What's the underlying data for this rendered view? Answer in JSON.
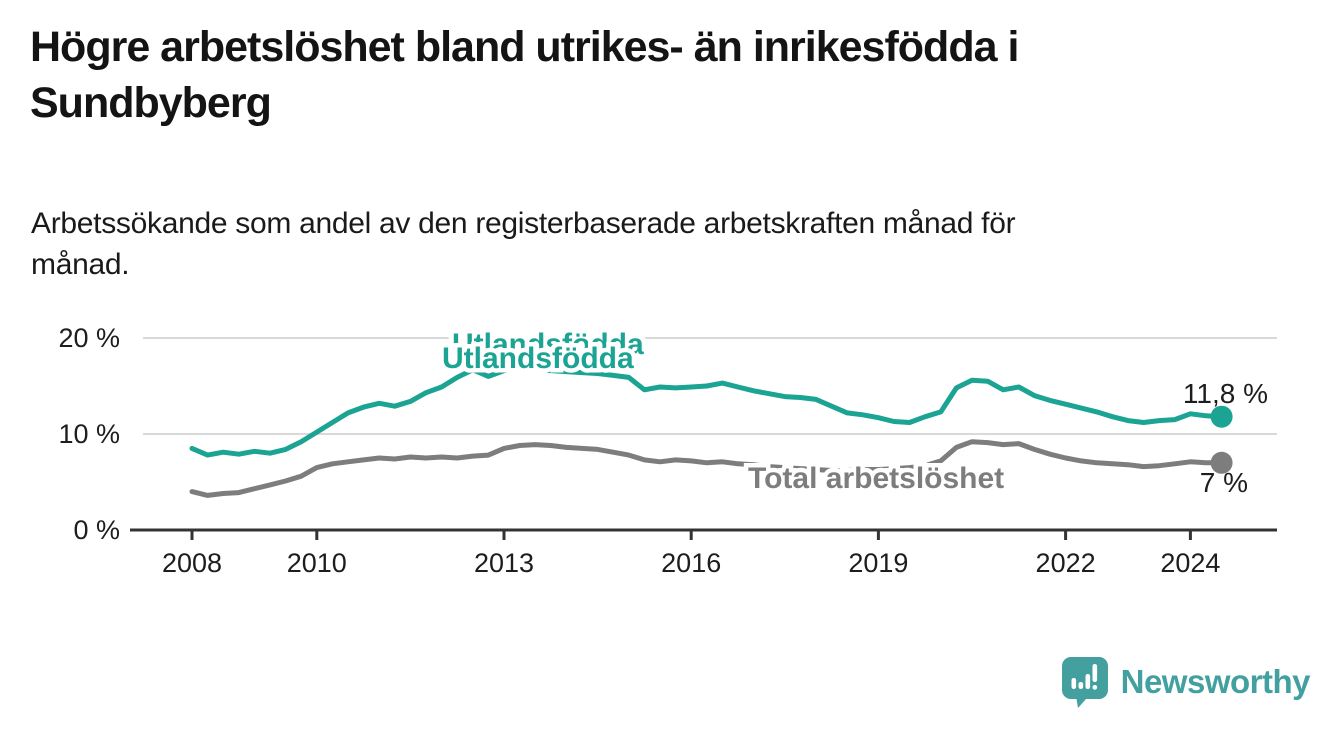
{
  "header": {
    "title_line1": "Högre arbetslöshet bland utrikes- än inrikesfödda i",
    "title_line2": "Sundbyberg",
    "subtitle_line1": "Arbetssökande som andel av den registerbaserade arbetskraften månad för",
    "subtitle_line2": "månad."
  },
  "chart_data": {
    "type": "line",
    "title": "Högre arbetslöshet bland utrikes- än inrikesfödda i Sundbyberg",
    "subtitle": "Arbetssökande som andel av den registerbaserade arbetskraften månad för månad.",
    "unit": "%",
    "grid": "horizontal",
    "legend_position": "inline-labels",
    "ylim": [
      0,
      20
    ],
    "y_tick_labels": [
      "0 %",
      "10 %",
      "20 %"
    ],
    "x_tick_years": [
      2008,
      2010,
      2013,
      2016,
      2019,
      2022,
      2024
    ],
    "x_tick_labels": [
      "2008",
      "2010",
      "2013",
      "2016",
      "2019",
      "2022",
      "2024"
    ],
    "x_start": 2008,
    "x_step": 0.25,
    "x_end": 2024.5,
    "series": [
      {
        "name": "Utlandsfödda",
        "color": "#1ba393",
        "end_label": "11,8 %",
        "end_value": 11.8,
        "values": [
          8.5,
          7.8,
          8.1,
          7.9,
          8.2,
          8.0,
          8.4,
          9.2,
          10.2,
          11.2,
          12.2,
          12.8,
          13.2,
          12.9,
          13.4,
          14.3,
          14.9,
          15.9,
          16.7,
          16.0,
          16.6,
          16.9,
          16.8,
          16.6,
          16.5,
          16.4,
          16.3,
          16.1,
          15.9,
          14.6,
          14.9,
          14.8,
          14.9,
          15.0,
          15.3,
          14.9,
          14.5,
          14.2,
          13.9,
          13.8,
          13.6,
          12.9,
          12.2,
          12.0,
          11.7,
          11.3,
          11.2,
          11.8,
          12.3,
          14.8,
          15.6,
          15.5,
          14.6,
          14.9,
          14.0,
          13.5,
          13.1,
          12.7,
          12.3,
          11.8,
          11.4,
          11.2,
          11.4,
          11.5,
          12.1,
          11.9,
          11.8
        ]
      },
      {
        "name": "Total arbetslöshet",
        "color": "#7d7d7d",
        "end_label": "7 %",
        "end_value": 7.0,
        "values": [
          4.0,
          3.6,
          3.8,
          3.9,
          4.3,
          4.7,
          5.1,
          5.6,
          6.5,
          6.9,
          7.1,
          7.3,
          7.5,
          7.4,
          7.6,
          7.5,
          7.6,
          7.5,
          7.7,
          7.8,
          8.5,
          8.8,
          8.9,
          8.8,
          8.6,
          8.5,
          8.4,
          8.1,
          7.8,
          7.3,
          7.1,
          7.3,
          7.2,
          7.0,
          7.1,
          6.9,
          6.8,
          6.6,
          6.5,
          6.4,
          6.3,
          6.2,
          6.2,
          6.3,
          6.3,
          6.4,
          6.5,
          6.7,
          7.2,
          8.6,
          9.2,
          9.1,
          8.9,
          9.0,
          8.4,
          7.9,
          7.5,
          7.2,
          7.0,
          6.9,
          6.8,
          6.6,
          6.7,
          6.9,
          7.1,
          7.0,
          7.0
        ]
      }
    ]
  },
  "branding": {
    "wordmark": "Newsworthy",
    "logo_color": "#43a09f",
    "icon": "bar-chart-speech-bubble-icon"
  }
}
